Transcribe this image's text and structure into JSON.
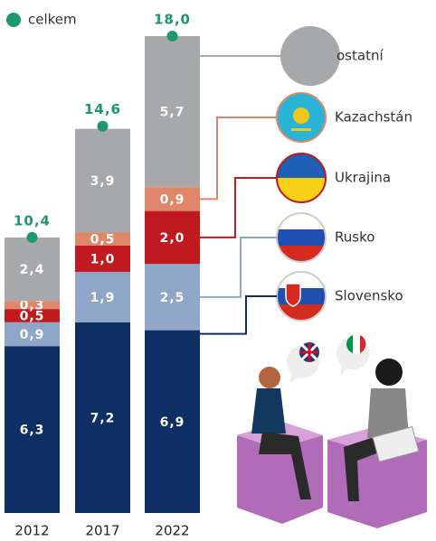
{
  "chart_data": {
    "type": "bar",
    "stacked": true,
    "categories": [
      "2012",
      "2017",
      "2022"
    ],
    "series": [
      {
        "name": "Slovensko",
        "color": "#0d2f64",
        "values": [
          6.3,
          7.2,
          6.9
        ],
        "value_labels": [
          "6,3",
          "7,2",
          "6,9"
        ]
      },
      {
        "name": "Rusko",
        "color": "#8fa6c9",
        "values": [
          0.9,
          1.9,
          2.5
        ],
        "value_labels": [
          "0,9",
          "1,9",
          "2,5"
        ]
      },
      {
        "name": "Ukrajina",
        "color": "#c0191f",
        "values": [
          0.5,
          1.0,
          2.0
        ],
        "value_labels": [
          "0,5",
          "1,0",
          "2,0"
        ]
      },
      {
        "name": "Kazachstán",
        "color": "#e0876a",
        "values": [
          0.3,
          0.5,
          0.9
        ],
        "value_labels": [
          "0,3",
          "0,5",
          "0,9"
        ]
      },
      {
        "name": "ostatní",
        "color": "#a7a8aa",
        "values": [
          2.4,
          3.9,
          5.7
        ],
        "value_labels": [
          "2,4",
          "3,9",
          "5,7"
        ]
      }
    ],
    "totals": {
      "name": "celkem",
      "color": "#1a9a6c",
      "values": [
        10.4,
        14.6,
        18.0
      ],
      "value_labels": [
        "10,4",
        "14,6",
        "18,0"
      ]
    }
  }
}
